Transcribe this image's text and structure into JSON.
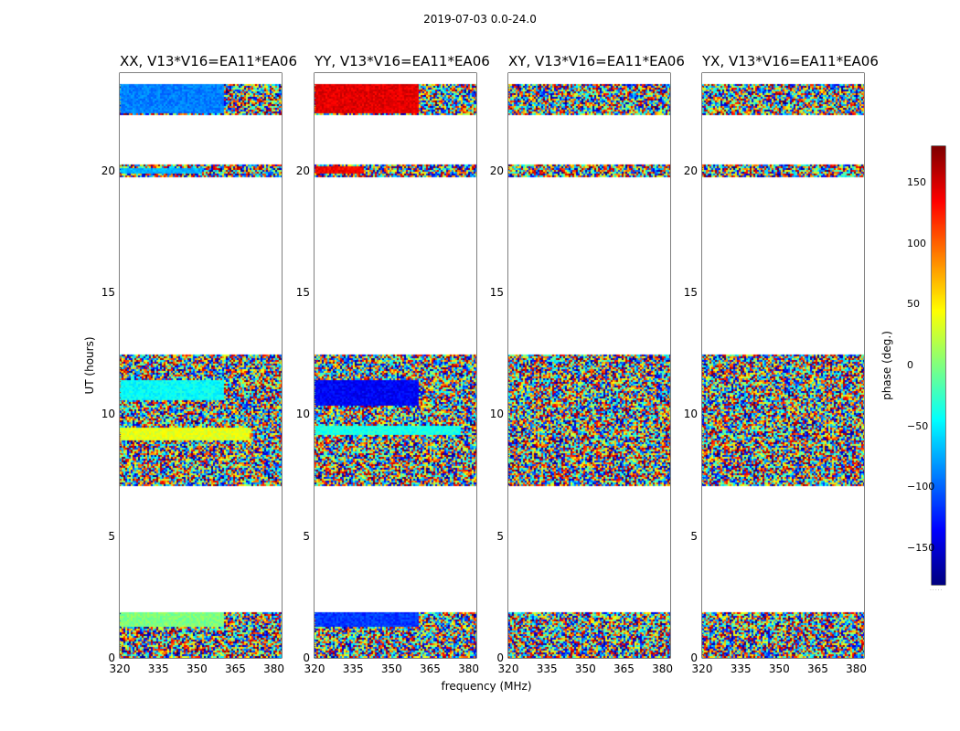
{
  "chart_data": {
    "type": "heatmap",
    "title": "2019-07-03 0.0-24.0",
    "xlabel": "frequency (MHz)",
    "ylabel": "UT (hours)",
    "xlim": [
      320,
      383
    ],
    "ylim": [
      0,
      24
    ],
    "x_ticks": [
      "320",
      "335",
      "350",
      "365",
      "380"
    ],
    "y_ticks": [
      "0",
      "5",
      "10",
      "15",
      "20"
    ],
    "grid": false,
    "colormap": "jet",
    "colorbar": {
      "label": "phase (deg.)",
      "range": [
        -180,
        180
      ],
      "ticks": [
        "150",
        "100",
        "50",
        "0",
        "−50",
        "−100",
        "−150"
      ],
      "caption": "....."
    },
    "data_time_ranges_hours": [
      [
        0.0,
        1.9
      ],
      [
        7.1,
        12.5
      ],
      [
        19.8,
        20.3
      ],
      [
        22.3,
        23.6
      ]
    ],
    "panels": [
      {
        "title": "XX, V13*V16=EA11*EA06"
      },
      {
        "title": "YY, V13*V16=EA11*EA06"
      },
      {
        "title": "XY, V13*V16=EA11*EA06"
      },
      {
        "title": "YX, V13*V16=EA11*EA06"
      }
    ]
  }
}
